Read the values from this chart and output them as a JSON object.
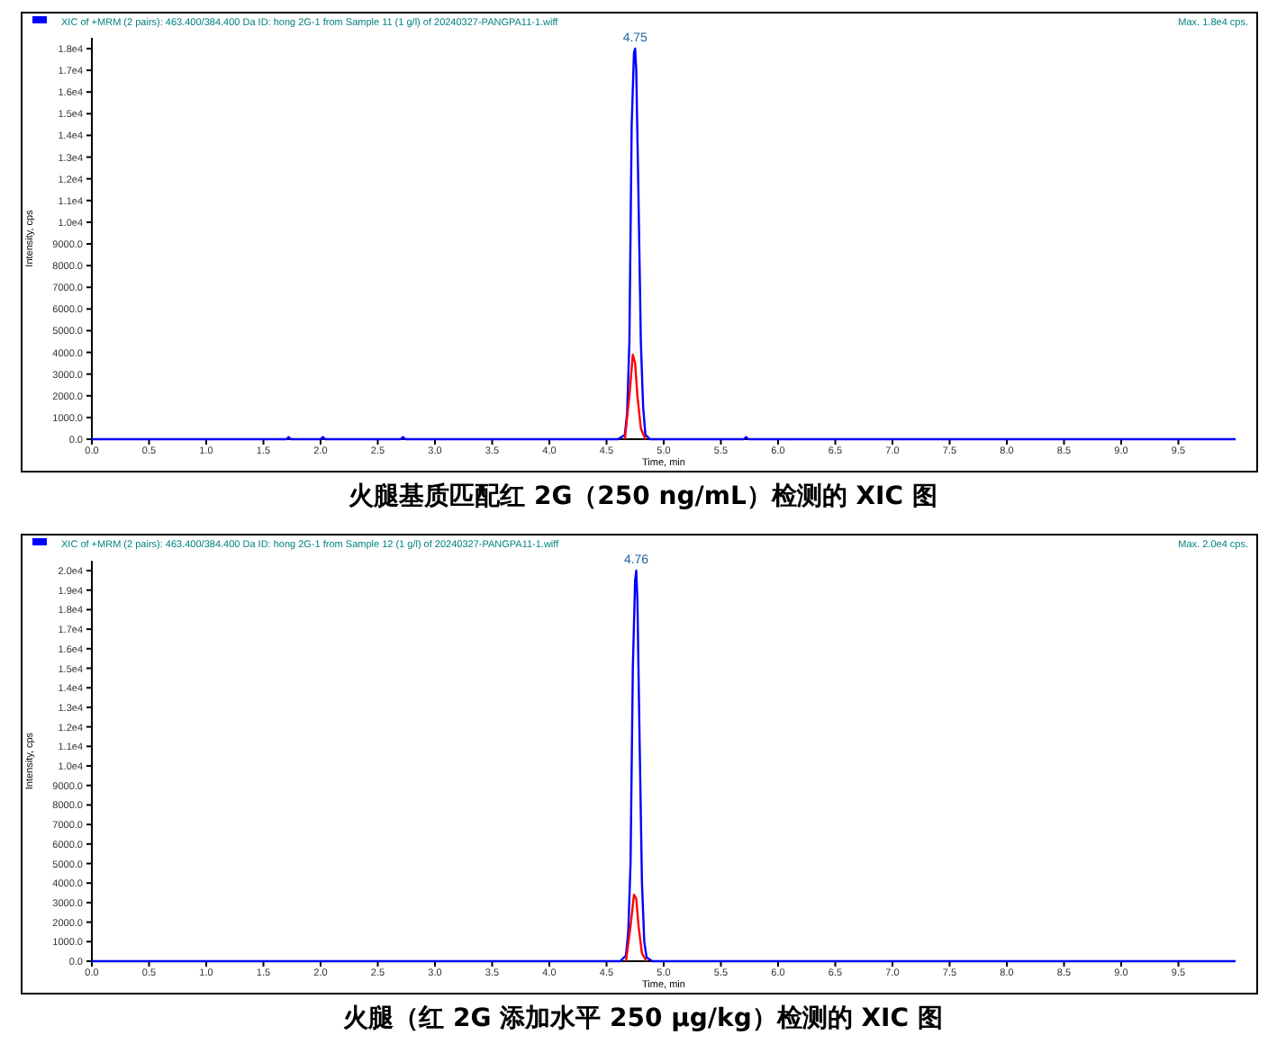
{
  "chart_data": [
    {
      "type": "line",
      "title": "XIC of +MRM (2 pairs): 463.400/384.400 Da ID: hong 2G-1 from Sample 11 (1 g/l) of 20240327-PANGPA11-1.wiff",
      "subtitle": "Max. 1.8e4 cps.",
      "xlabel": "Time, min",
      "ylabel": "Intensity, cps",
      "annotations": [
        {
          "text": "4.75",
          "x": 4.75,
          "y": 18000
        },
        "火腿基质匹配红 2G（250 ng/mL）检测的 XIC 图"
      ],
      "xlim": [
        0,
        10
      ],
      "ylim": [
        0,
        18500
      ],
      "xticks": [
        {
          "value": 0,
          "label": "0.0"
        },
        {
          "value": 0.5,
          "label": "0.5"
        },
        {
          "value": 1,
          "label": "1.0"
        },
        {
          "value": 1.5,
          "label": "1.5"
        },
        {
          "value": 2,
          "label": "2.0"
        },
        {
          "value": 2.5,
          "label": "2.5"
        },
        {
          "value": 3,
          "label": "3.0"
        },
        {
          "value": 3.5,
          "label": "3.5"
        },
        {
          "value": 4,
          "label": "4.0"
        },
        {
          "value": 4.5,
          "label": "4.5"
        },
        {
          "value": 5,
          "label": "5.0"
        },
        {
          "value": 5.5,
          "label": "5.5"
        },
        {
          "value": 6,
          "label": "6.0"
        },
        {
          "value": 6.5,
          "label": "6.5"
        },
        {
          "value": 7,
          "label": "7.0"
        },
        {
          "value": 7.5,
          "label": "7.5"
        },
        {
          "value": 8,
          "label": "8.0"
        },
        {
          "value": 8.5,
          "label": "8.5"
        },
        {
          "value": 9,
          "label": "9.0"
        },
        {
          "value": 9.5,
          "label": "9.5"
        }
      ],
      "yticks": [
        {
          "value": 0,
          "label": "0.0"
        },
        {
          "value": 1000,
          "label": "1000.0"
        },
        {
          "value": 2000,
          "label": "2000.0"
        },
        {
          "value": 3000,
          "label": "3000.0"
        },
        {
          "value": 4000,
          "label": "4000.0"
        },
        {
          "value": 5000,
          "label": "5000.0"
        },
        {
          "value": 6000,
          "label": "6000.0"
        },
        {
          "value": 7000,
          "label": "7000.0"
        },
        {
          "value": 8000,
          "label": "8000.0"
        },
        {
          "value": 9000,
          "label": "9000.0"
        },
        {
          "value": 10000,
          "label": "1.0e4"
        },
        {
          "value": 11000,
          "label": "1.1e4"
        },
        {
          "value": 12000,
          "label": "1.2e4"
        },
        {
          "value": 13000,
          "label": "1.3e4"
        },
        {
          "value": 14000,
          "label": "1.4e4"
        },
        {
          "value": 15000,
          "label": "1.5e4"
        },
        {
          "value": 16000,
          "label": "1.6e4"
        },
        {
          "value": 17000,
          "label": "1.7e4"
        },
        {
          "value": 18000,
          "label": "1.8e4"
        }
      ],
      "series": [
        {
          "color": "#0000ff",
          "x": [
            0,
            1.7,
            1.72,
            1.74,
            2.0,
            2.02,
            2.04,
            2.7,
            2.72,
            2.74,
            4.6,
            4.66,
            4.68,
            4.7,
            4.72,
            4.74,
            4.75,
            4.76,
            4.78,
            4.8,
            4.82,
            4.84,
            4.88,
            5.7,
            5.72,
            5.74,
            10
          ],
          "values": [
            0,
            0,
            100,
            0,
            0,
            100,
            0,
            0,
            100,
            0,
            0,
            200,
            1200,
            4500,
            14500,
            17800,
            18000,
            17000,
            11000,
            4500,
            1500,
            200,
            0,
            0,
            100,
            0,
            0
          ]
        },
        {
          "color": "#ff0000",
          "x": [
            4.66,
            4.7,
            4.73,
            4.75,
            4.77,
            4.8,
            4.84
          ],
          "values": [
            0,
            2000,
            3900,
            3500,
            2000,
            500,
            0
          ]
        }
      ]
    },
    {
      "type": "line",
      "title": "XIC of +MRM (2 pairs): 463.400/384.400 Da ID: hong 2G-1 from Sample 12 (1 g/l) of 20240327-PANGPA11-1.wiff",
      "subtitle": "Max. 2.0e4 cps.",
      "xlabel": "Time, min",
      "ylabel": "Intensity, cps",
      "annotations": [
        {
          "text": "4.76",
          "x": 4.76,
          "y": 20000
        },
        "火腿（红 2G 添加水平 250 μg/kg）检测的 XIC 图"
      ],
      "xlim": [
        0,
        10
      ],
      "ylim": [
        0,
        20500
      ],
      "xticks": [
        {
          "value": 0,
          "label": "0.0"
        },
        {
          "value": 0.5,
          "label": "0.5"
        },
        {
          "value": 1,
          "label": "1.0"
        },
        {
          "value": 1.5,
          "label": "1.5"
        },
        {
          "value": 2,
          "label": "2.0"
        },
        {
          "value": 2.5,
          "label": "2.5"
        },
        {
          "value": 3,
          "label": "3.0"
        },
        {
          "value": 3.5,
          "label": "3.5"
        },
        {
          "value": 4,
          "label": "4.0"
        },
        {
          "value": 4.5,
          "label": "4.5"
        },
        {
          "value": 5,
          "label": "5.0"
        },
        {
          "value": 5.5,
          "label": "5.5"
        },
        {
          "value": 6,
          "label": "6.0"
        },
        {
          "value": 6.5,
          "label": "6.5"
        },
        {
          "value": 7,
          "label": "7.0"
        },
        {
          "value": 7.5,
          "label": "7.5"
        },
        {
          "value": 8,
          "label": "8.0"
        },
        {
          "value": 8.5,
          "label": "8.5"
        },
        {
          "value": 9,
          "label": "9.0"
        },
        {
          "value": 9.5,
          "label": "9.5"
        }
      ],
      "yticks": [
        {
          "value": 0,
          "label": "0.0"
        },
        {
          "value": 1000,
          "label": "1000.0"
        },
        {
          "value": 2000,
          "label": "2000.0"
        },
        {
          "value": 3000,
          "label": "3000.0"
        },
        {
          "value": 4000,
          "label": "4000.0"
        },
        {
          "value": 5000,
          "label": "5000.0"
        },
        {
          "value": 6000,
          "label": "6000.0"
        },
        {
          "value": 7000,
          "label": "7000.0"
        },
        {
          "value": 8000,
          "label": "8000.0"
        },
        {
          "value": 9000,
          "label": "9000.0"
        },
        {
          "value": 10000,
          "label": "1.0e4"
        },
        {
          "value": 11000,
          "label": "1.1e4"
        },
        {
          "value": 12000,
          "label": "1.2e4"
        },
        {
          "value": 13000,
          "label": "1.3e4"
        },
        {
          "value": 14000,
          "label": "1.4e4"
        },
        {
          "value": 15000,
          "label": "1.5e4"
        },
        {
          "value": 16000,
          "label": "1.6e4"
        },
        {
          "value": 17000,
          "label": "1.7e4"
        },
        {
          "value": 18000,
          "label": "1.8e4"
        },
        {
          "value": 19000,
          "label": "1.9e4"
        },
        {
          "value": 20000,
          "label": "2.0e4"
        }
      ],
      "series": [
        {
          "color": "#0000ff",
          "x": [
            0,
            4.62,
            4.67,
            4.69,
            4.71,
            4.73,
            4.75,
            4.76,
            4.77,
            4.79,
            4.81,
            4.83,
            4.85,
            4.9,
            10
          ],
          "values": [
            0,
            0,
            300,
            1500,
            5000,
            15000,
            19500,
            20000,
            18500,
            11000,
            4000,
            1000,
            200,
            0,
            0
          ]
        },
        {
          "color": "#ff0000",
          "x": [
            4.67,
            4.71,
            4.74,
            4.76,
            4.78,
            4.81,
            4.85
          ],
          "values": [
            0,
            1800,
            3400,
            3200,
            1800,
            400,
            0
          ]
        }
      ]
    }
  ]
}
